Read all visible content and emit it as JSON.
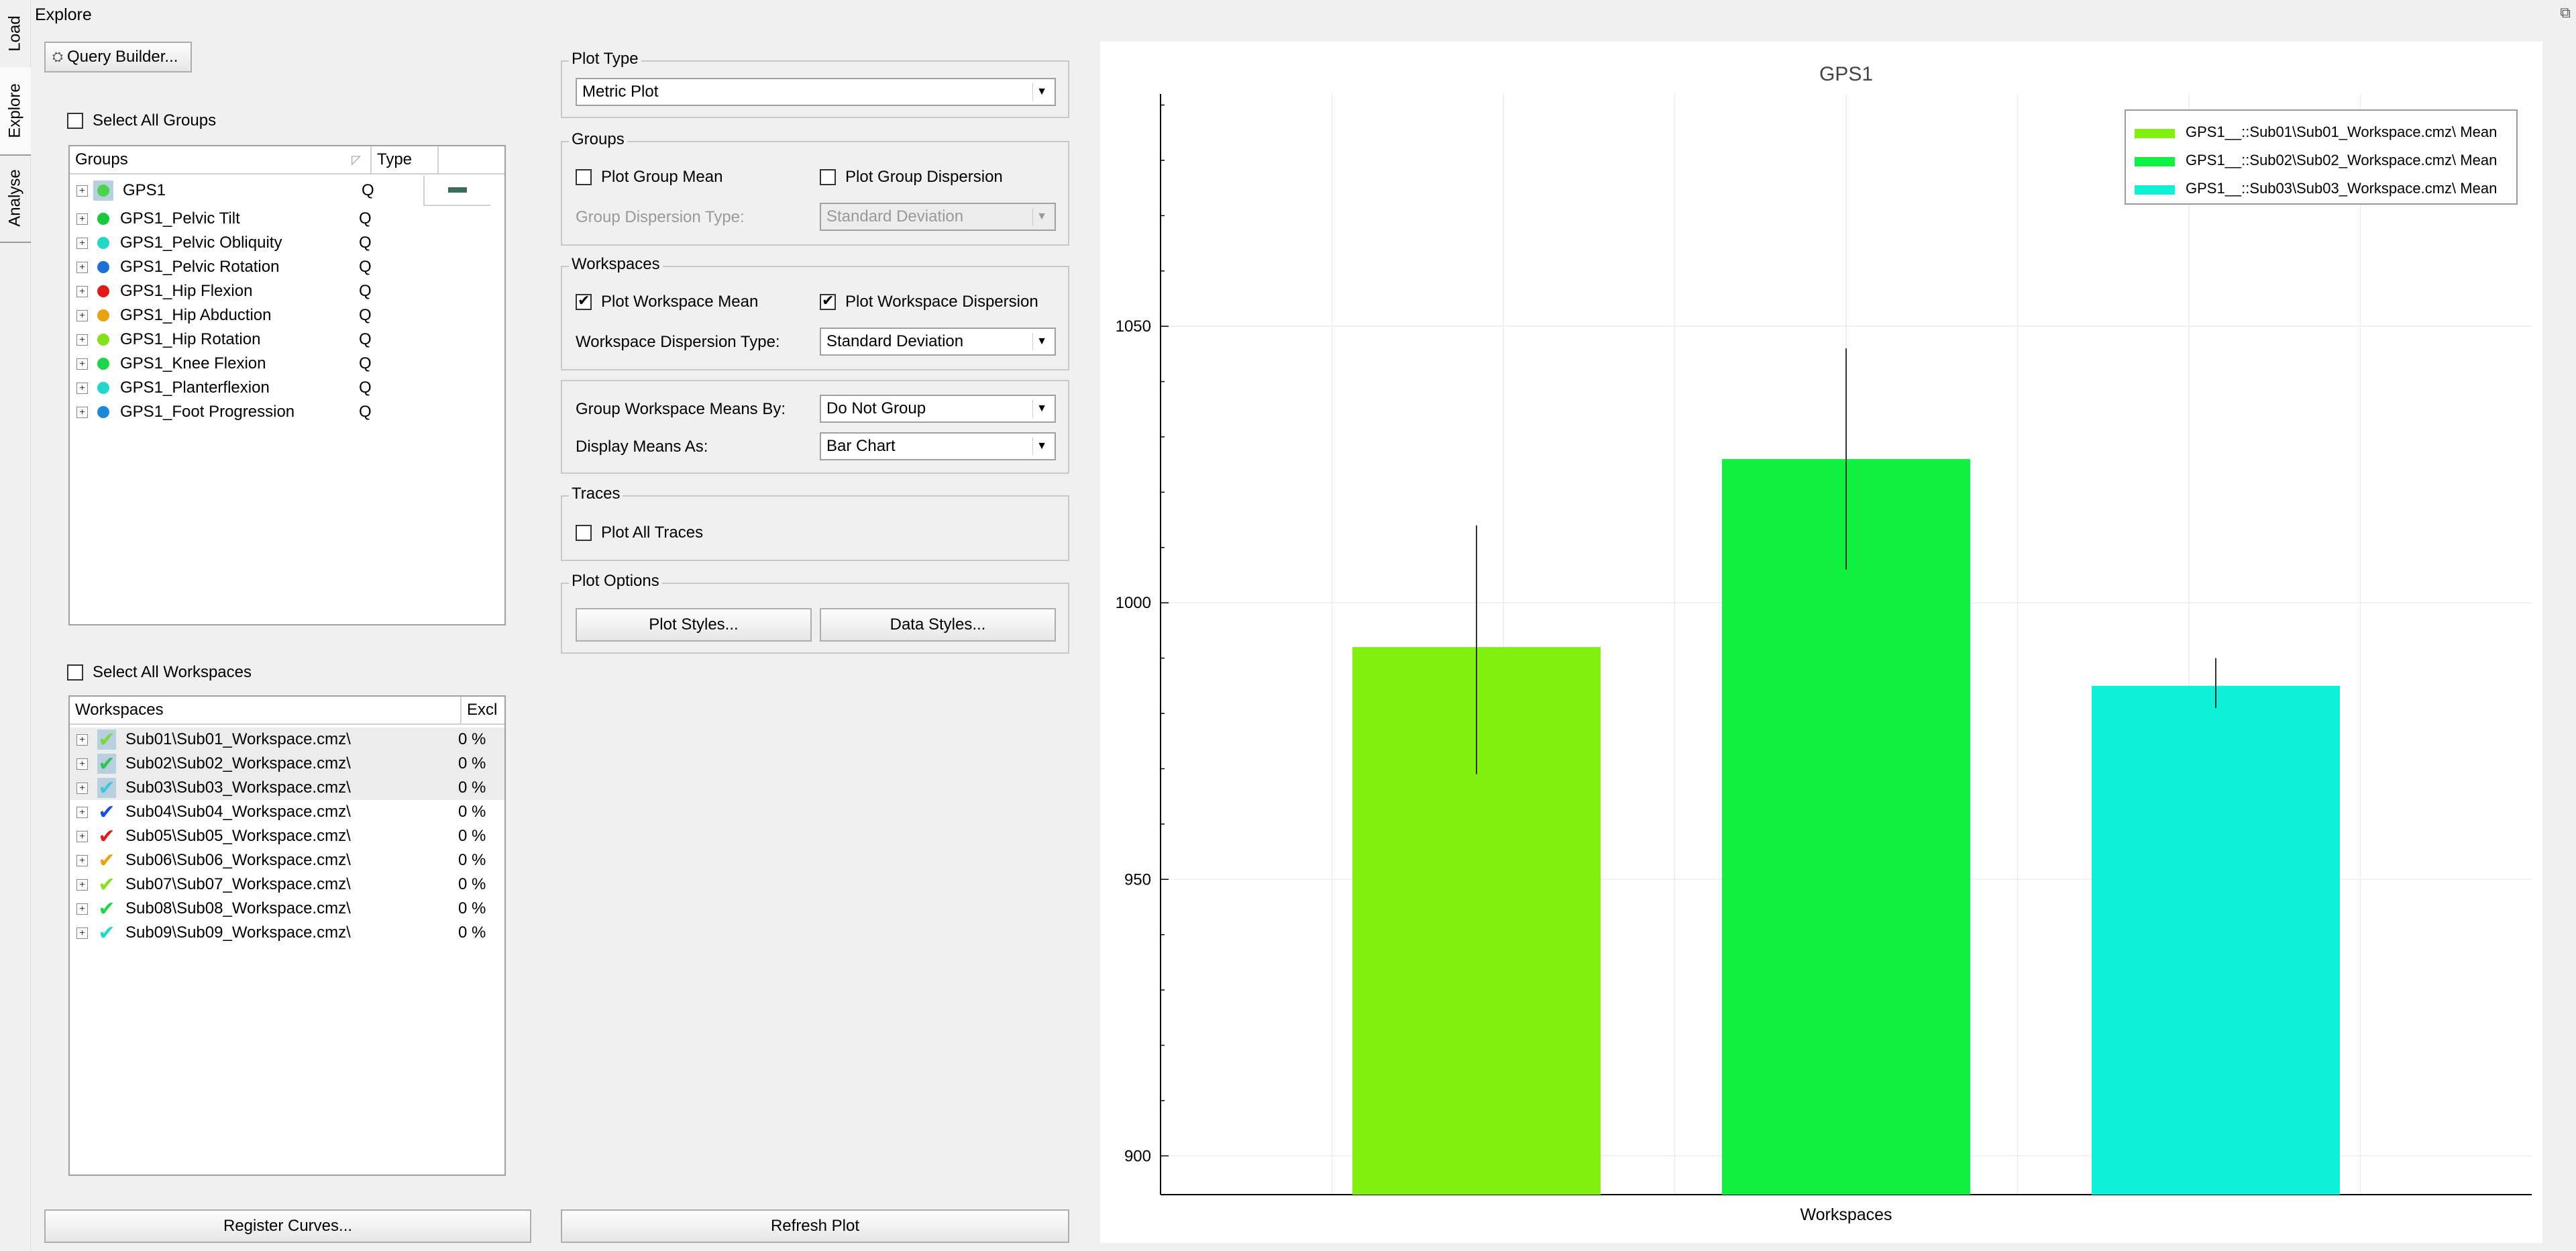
{
  "window": {
    "title": "Explore"
  },
  "side_tabs": [
    {
      "label": "Load"
    },
    {
      "label": "Explore"
    },
    {
      "label": "Analyse"
    }
  ],
  "query_builder": {
    "label": "Query Builder..."
  },
  "groups_panel": {
    "select_all_label": "Select All Groups",
    "col_groups": "Groups",
    "col_type": "Type",
    "items": [
      {
        "name": "GPS1",
        "type": "Q",
        "color": "#4cd34c"
      },
      {
        "name": "GPS1_Pelvic Tilt",
        "type": "Q",
        "color": "#19c93d"
      },
      {
        "name": "GPS1_Pelvic Obliquity",
        "type": "Q",
        "color": "#22d6c8"
      },
      {
        "name": "GPS1_Pelvic Rotation",
        "type": "Q",
        "color": "#1e6fd8"
      },
      {
        "name": "GPS1_Hip Flexion",
        "type": "Q",
        "color": "#e01b1b"
      },
      {
        "name": "GPS1_Hip Abduction",
        "type": "Q",
        "color": "#e8a20c"
      },
      {
        "name": "GPS1_Hip Rotation",
        "type": "Q",
        "color": "#86e01a"
      },
      {
        "name": "GPS1_Knee Flexion",
        "type": "Q",
        "color": "#1fd44a"
      },
      {
        "name": "GPS1_Planterflexion",
        "type": "Q",
        "color": "#22d6cc"
      },
      {
        "name": "GPS1_Foot Progression",
        "type": "Q",
        "color": "#1e88d8"
      }
    ]
  },
  "workspaces_panel": {
    "select_all_label": "Select All Workspaces",
    "col_workspaces": "Workspaces",
    "col_excl": "Excl",
    "items": [
      {
        "name": "Sub01\\Sub01_Workspace.cmz\\",
        "excl": "0 %",
        "color": "#78d83a",
        "selected": true
      },
      {
        "name": "Sub02\\Sub02_Workspace.cmz\\",
        "excl": "0 %",
        "color": "#2cc455",
        "selected": true
      },
      {
        "name": "Sub03\\Sub03_Workspace.cmz\\",
        "excl": "0 %",
        "color": "#3ec8d8",
        "selected": true
      },
      {
        "name": "Sub04\\Sub04_Workspace.cmz\\",
        "excl": "0 %",
        "color": "#1a4fd8",
        "selected": false
      },
      {
        "name": "Sub05\\Sub05_Workspace.cmz\\",
        "excl": "0 %",
        "color": "#e01b1b",
        "selected": false
      },
      {
        "name": "Sub06\\Sub06_Workspace.cmz\\",
        "excl": "0 %",
        "color": "#e8a20c",
        "selected": false
      },
      {
        "name": "Sub07\\Sub07_Workspace.cmz\\",
        "excl": "0 %",
        "color": "#86e01a",
        "selected": false
      },
      {
        "name": "Sub08\\Sub08_Workspace.cmz\\",
        "excl": "0 %",
        "color": "#1fd44a",
        "selected": false
      },
      {
        "name": "Sub09\\Sub09_Workspace.cmz\\",
        "excl": "0 %",
        "color": "#22d6cc",
        "selected": false
      }
    ]
  },
  "plot_type": {
    "title": "Plot Type",
    "value": "Metric Plot"
  },
  "groups_box": {
    "title": "Groups",
    "plot_group_mean": "Plot Group Mean",
    "plot_group_dispersion": "Plot Group Dispersion",
    "dispersion_type_label": "Group Dispersion Type:",
    "dispersion_type_value": "Standard Deviation"
  },
  "workspaces_box": {
    "title": "Workspaces",
    "plot_workspace_mean": "Plot Workspace Mean",
    "plot_workspace_dispersion": "Plot Workspace Dispersion",
    "dispersion_type_label": "Workspace Dispersion Type:",
    "dispersion_type_value": "Standard Deviation"
  },
  "means_box": {
    "group_by_label": "Group Workspace Means By:",
    "group_by_value": "Do Not Group",
    "display_as_label": "Display Means As:",
    "display_as_value": "Bar Chart"
  },
  "traces_box": {
    "title": "Traces",
    "plot_all_traces": "Plot All Traces"
  },
  "plot_options": {
    "title": "Plot Options",
    "plot_styles": "Plot Styles...",
    "data_styles": "Data Styles..."
  },
  "bottom": {
    "register_curves": "Register Curves...",
    "refresh_plot": "Refresh Plot"
  },
  "chart_data": {
    "type": "bar",
    "title": "GPS1",
    "xlabel": "Workspaces",
    "ylabel": "",
    "ylim": [
      893,
      1092
    ],
    "yticks": [
      900,
      950,
      1000,
      1050
    ],
    "grid": true,
    "legend_position": "top-right",
    "series": [
      {
        "name": "GPS1__::Sub01\\Sub01_Workspace.cmz\\ Mean",
        "value": 992,
        "err_low": 969,
        "err_high": 1014,
        "color": "#80f00f"
      },
      {
        "name": "GPS1__::Sub02\\Sub02_Workspace.cmz\\ Mean",
        "value": 1026,
        "err_low": 1006,
        "err_high": 1046,
        "color": "#10f040"
      },
      {
        "name": "GPS1__::Sub03\\Sub03_Workspace.cmz\\ Mean",
        "value": 985,
        "err_low": 981,
        "err_high": 990,
        "color": "#10f0d8"
      }
    ]
  }
}
